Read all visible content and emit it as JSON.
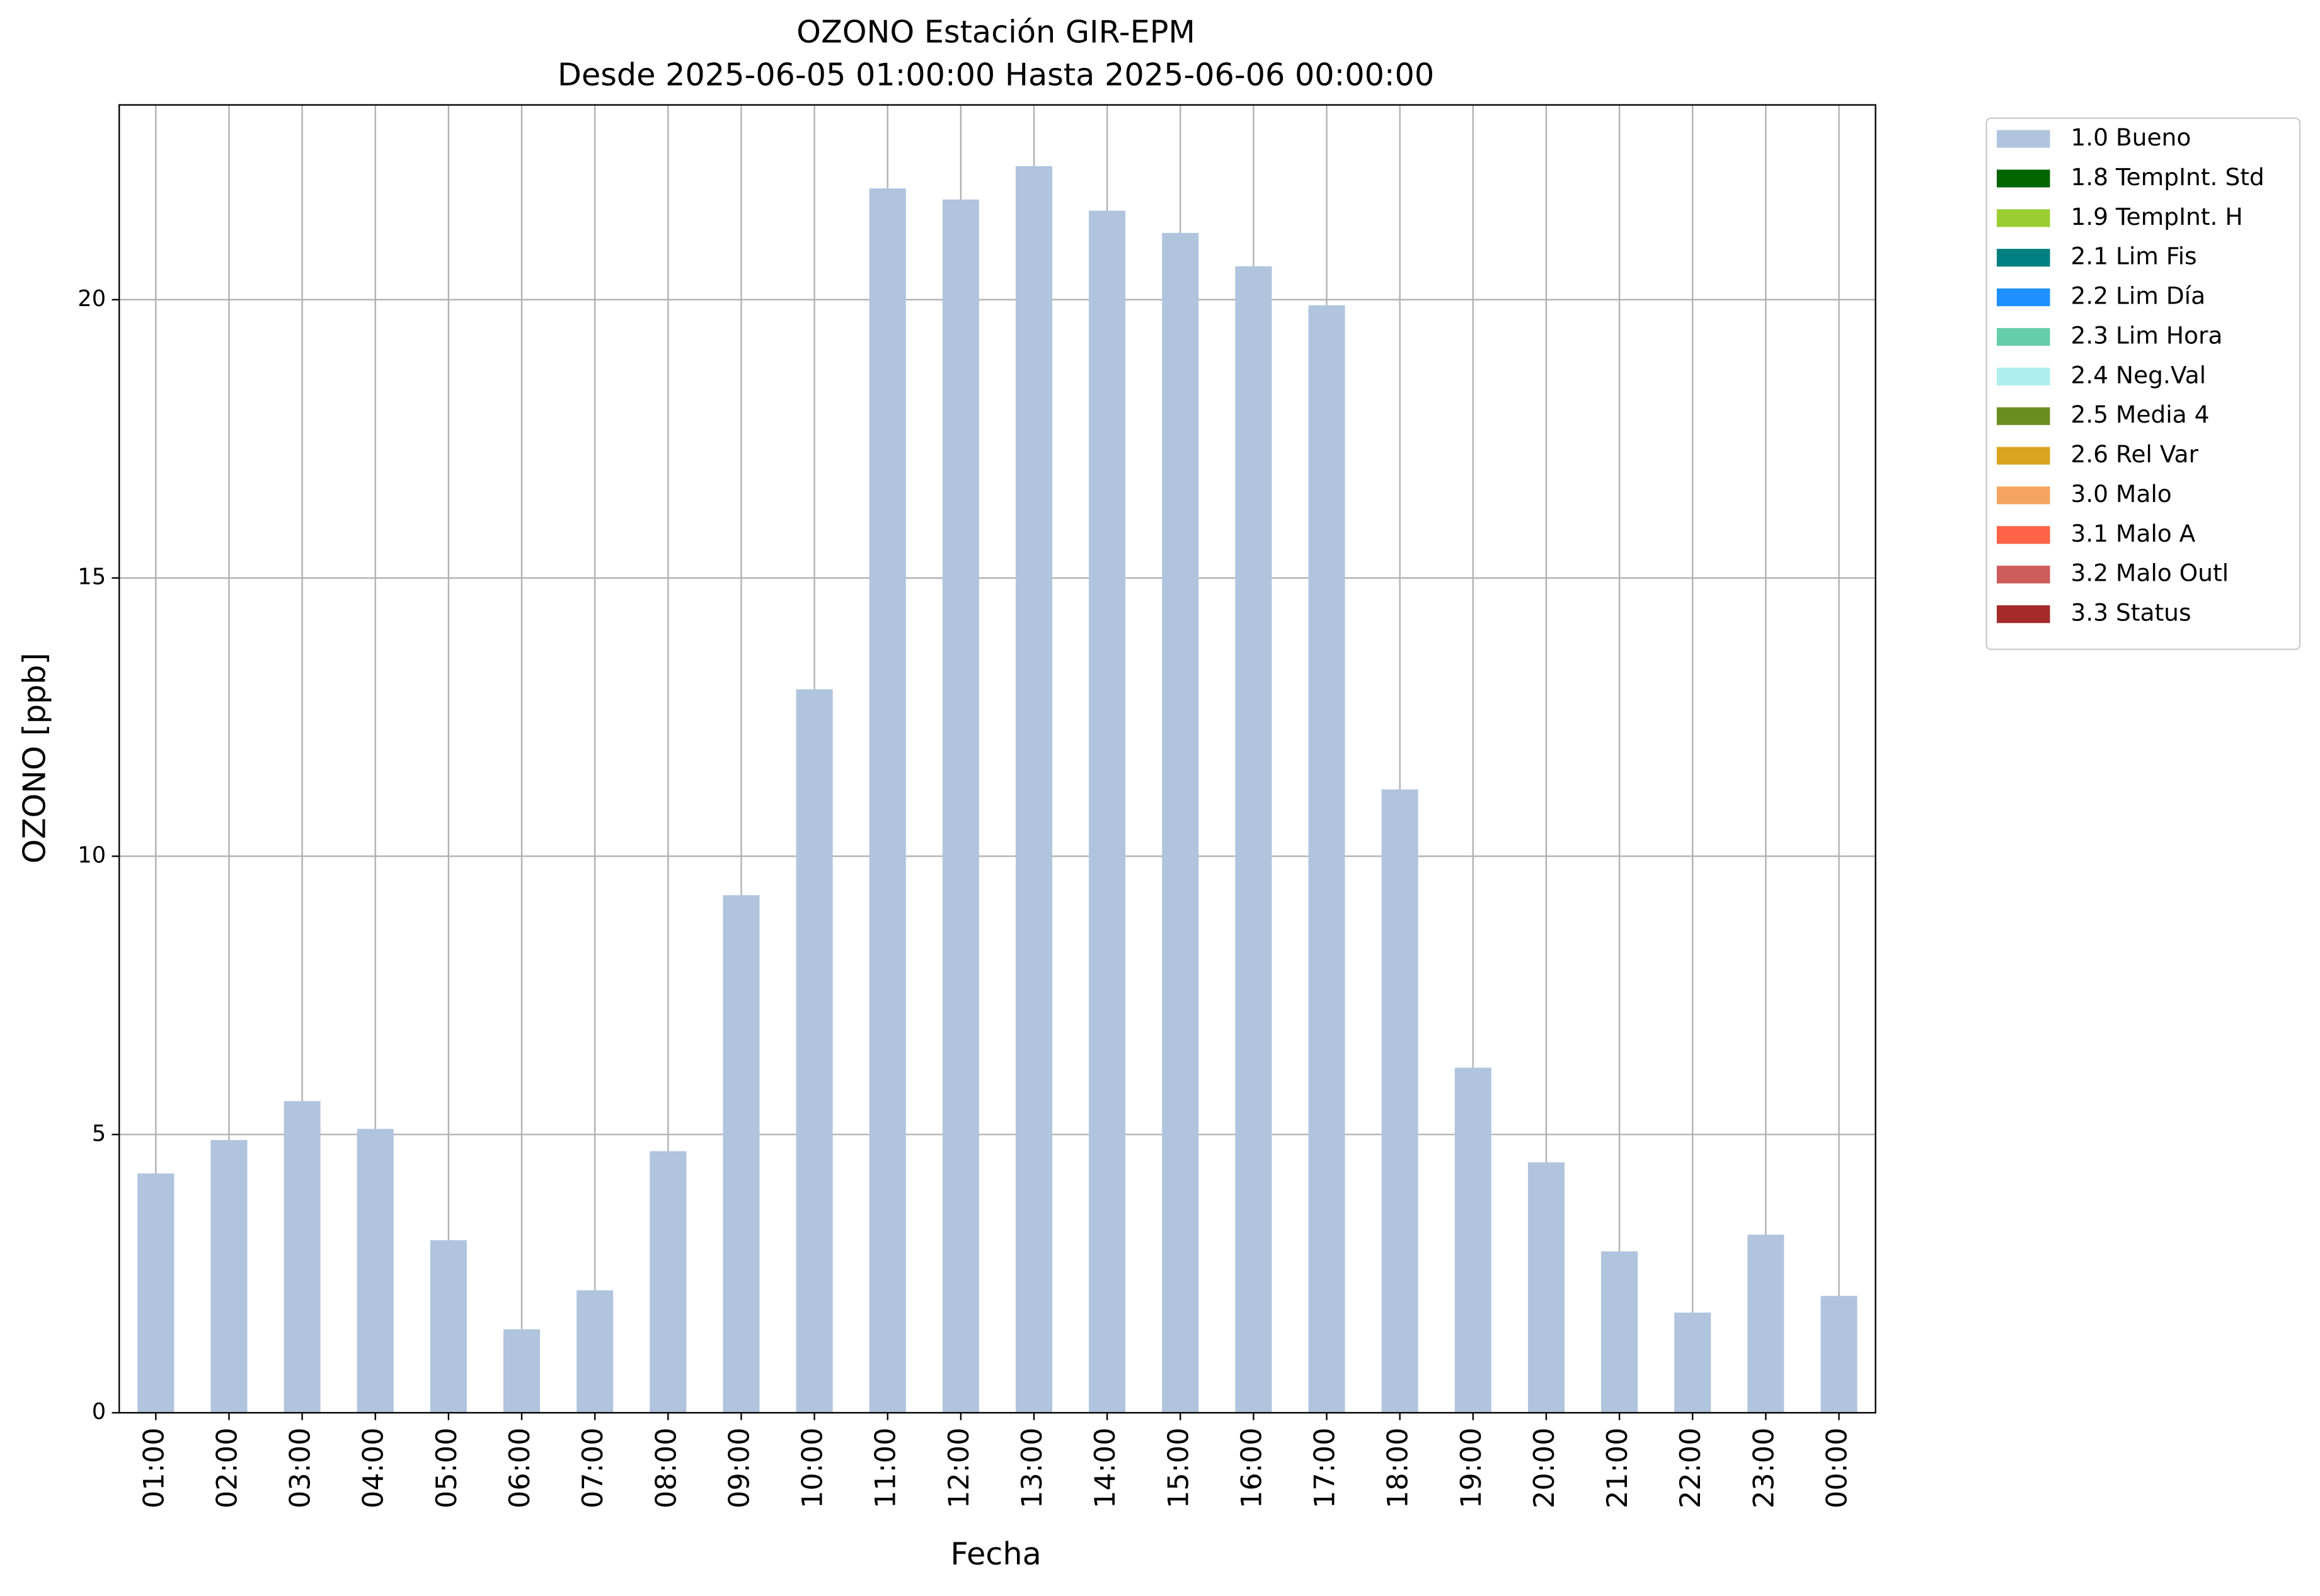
{
  "chart_data": {
    "type": "bar",
    "title": "OZONO Estación GIR-EPM",
    "subtitle": "Desde 2025-06-05 01:00:00 Hasta 2025-06-06 00:00:00",
    "xlabel": "Fecha",
    "ylabel": "OZONO [ppb]",
    "categories": [
      "01:00",
      "02:00",
      "03:00",
      "04:00",
      "05:00",
      "06:00",
      "07:00",
      "08:00",
      "09:00",
      "10:00",
      "11:00",
      "12:00",
      "13:00",
      "14:00",
      "15:00",
      "16:00",
      "17:00",
      "18:00",
      "19:00",
      "20:00",
      "21:00",
      "22:00",
      "23:00",
      "00:00"
    ],
    "series": [
      {
        "name": "1.0 Bueno",
        "color": "#b0c4de",
        "values": [
          4.3,
          4.9,
          5.6,
          5.1,
          3.1,
          1.5,
          2.2,
          4.7,
          9.3,
          13.0,
          22.0,
          21.8,
          22.4,
          21.6,
          21.2,
          20.6,
          19.9,
          11.2,
          6.2,
          4.5,
          2.9,
          1.8,
          3.2,
          2.1
        ]
      },
      {
        "name": "1.8 TempInt. Std",
        "color": "#006400",
        "values": [
          0,
          0,
          0,
          0,
          0,
          0,
          0,
          0,
          0,
          0,
          0,
          0,
          0,
          0,
          0,
          0,
          0,
          0,
          0,
          0,
          0,
          0,
          0,
          0
        ]
      },
      {
        "name": "1.9 TempInt. H",
        "color": "#9acd32",
        "values": [
          0,
          0,
          0,
          0,
          0,
          0,
          0,
          0,
          0,
          0,
          0,
          0,
          0,
          0,
          0,
          0,
          0,
          0,
          0,
          0,
          0,
          0,
          0,
          0
        ]
      },
      {
        "name": "2.1 Lim Fis",
        "color": "#008080",
        "values": [
          0,
          0,
          0,
          0,
          0,
          0,
          0,
          0,
          0,
          0,
          0,
          0,
          0,
          0,
          0,
          0,
          0,
          0,
          0,
          0,
          0,
          0,
          0,
          0
        ]
      },
      {
        "name": "2.2 Lim Día",
        "color": "#1e90ff",
        "values": [
          0,
          0,
          0,
          0,
          0,
          0,
          0,
          0,
          0,
          0,
          0,
          0,
          0,
          0,
          0,
          0,
          0,
          0,
          0,
          0,
          0,
          0,
          0,
          0
        ]
      },
      {
        "name": "2.3 Lim Hora",
        "color": "#66cdaa",
        "values": [
          0,
          0,
          0,
          0,
          0,
          0,
          0,
          0,
          0,
          0,
          0,
          0,
          0,
          0,
          0,
          0,
          0,
          0,
          0,
          0,
          0,
          0,
          0,
          0
        ]
      },
      {
        "name": "2.4 Neg.Val",
        "color": "#afeeee",
        "values": [
          0,
          0,
          0,
          0,
          0,
          0,
          0,
          0,
          0,
          0,
          0,
          0,
          0,
          0,
          0,
          0,
          0,
          0,
          0,
          0,
          0,
          0,
          0,
          0
        ]
      },
      {
        "name": "2.5 Media 4",
        "color": "#6b8e23",
        "values": [
          0,
          0,
          0,
          0,
          0,
          0,
          0,
          0,
          0,
          0,
          0,
          0,
          0,
          0,
          0,
          0,
          0,
          0,
          0,
          0,
          0,
          0,
          0,
          0
        ]
      },
      {
        "name": "2.6 Rel Var",
        "color": "#daa520",
        "values": [
          0,
          0,
          0,
          0,
          0,
          0,
          0,
          0,
          0,
          0,
          0,
          0,
          0,
          0,
          0,
          0,
          0,
          0,
          0,
          0,
          0,
          0,
          0,
          0
        ]
      },
      {
        "name": "3.0 Malo",
        "color": "#f4a460",
        "values": [
          0,
          0,
          0,
          0,
          0,
          0,
          0,
          0,
          0,
          0,
          0,
          0,
          0,
          0,
          0,
          0,
          0,
          0,
          0,
          0,
          0,
          0,
          0,
          0
        ]
      },
      {
        "name": "3.1 Malo A",
        "color": "#ff6347",
        "values": [
          0,
          0,
          0,
          0,
          0,
          0,
          0,
          0,
          0,
          0,
          0,
          0,
          0,
          0,
          0,
          0,
          0,
          0,
          0,
          0,
          0,
          0,
          0,
          0
        ]
      },
      {
        "name": "3.2 Malo Outl",
        "color": "#cd5c5c",
        "values": [
          0,
          0,
          0,
          0,
          0,
          0,
          0,
          0,
          0,
          0,
          0,
          0,
          0,
          0,
          0,
          0,
          0,
          0,
          0,
          0,
          0,
          0,
          0,
          0
        ]
      },
      {
        "name": "3.3 Status",
        "color": "#a52a2a",
        "values": [
          0,
          0,
          0,
          0,
          0,
          0,
          0,
          0,
          0,
          0,
          0,
          0,
          0,
          0,
          0,
          0,
          0,
          0,
          0,
          0,
          0,
          0,
          0,
          0
        ]
      }
    ],
    "stacked": true,
    "ylim": [
      0,
      23.5
    ],
    "yticks": [
      0,
      5,
      10,
      15,
      20
    ],
    "grid": true,
    "legend": "outside-upper-right"
  }
}
